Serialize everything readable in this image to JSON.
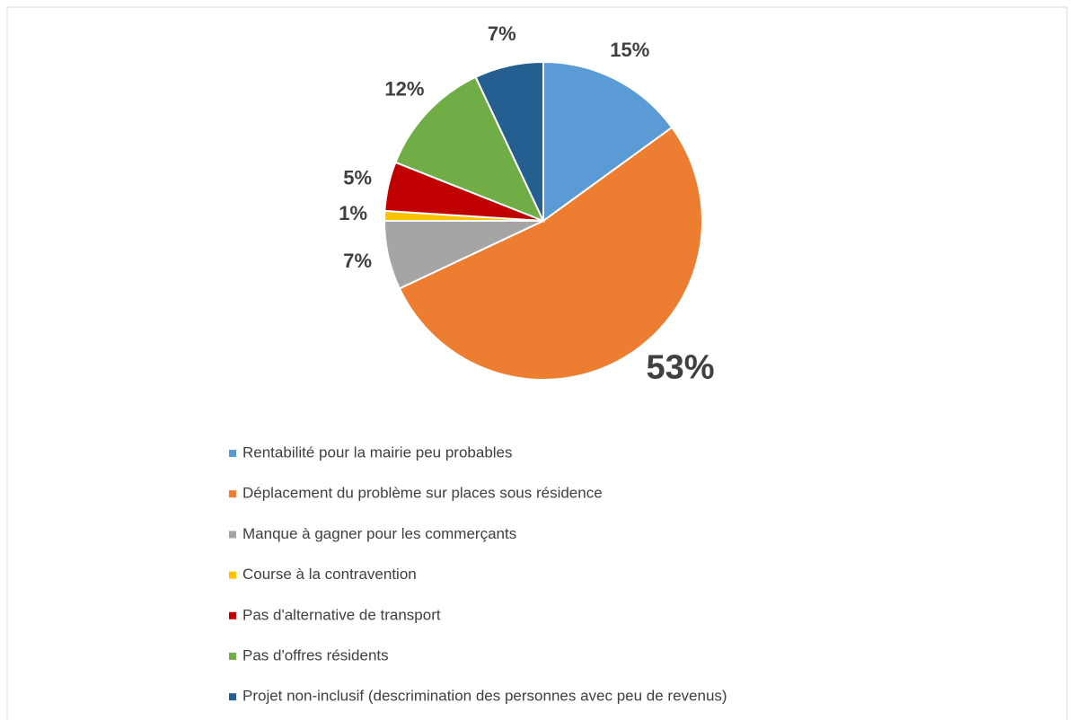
{
  "chart_data": {
    "type": "pie",
    "categories": [
      "Rentabilité pour la mairie peu probables",
      "Déplacement du problème sur places sous résidence",
      "Manque à gagner pour les commerçants",
      "Course à la contravention",
      "Pas d'alternative de transport",
      "Pas d'offres résidents",
      "Projet non-inclusif (descrimination des personnes avec peu de revenus)"
    ],
    "values": [
      15,
      53,
      7,
      1,
      5,
      12,
      7
    ],
    "value_labels": [
      "15%",
      "53%",
      "7%",
      "1%",
      "5%",
      "12%",
      "7%"
    ],
    "colors": [
      "#5b9bd5",
      "#ed7d31",
      "#a5a5a5",
      "#ffc000",
      "#c00000",
      "#70ad47",
      "#255e91"
    ],
    "legend": "bottom"
  }
}
